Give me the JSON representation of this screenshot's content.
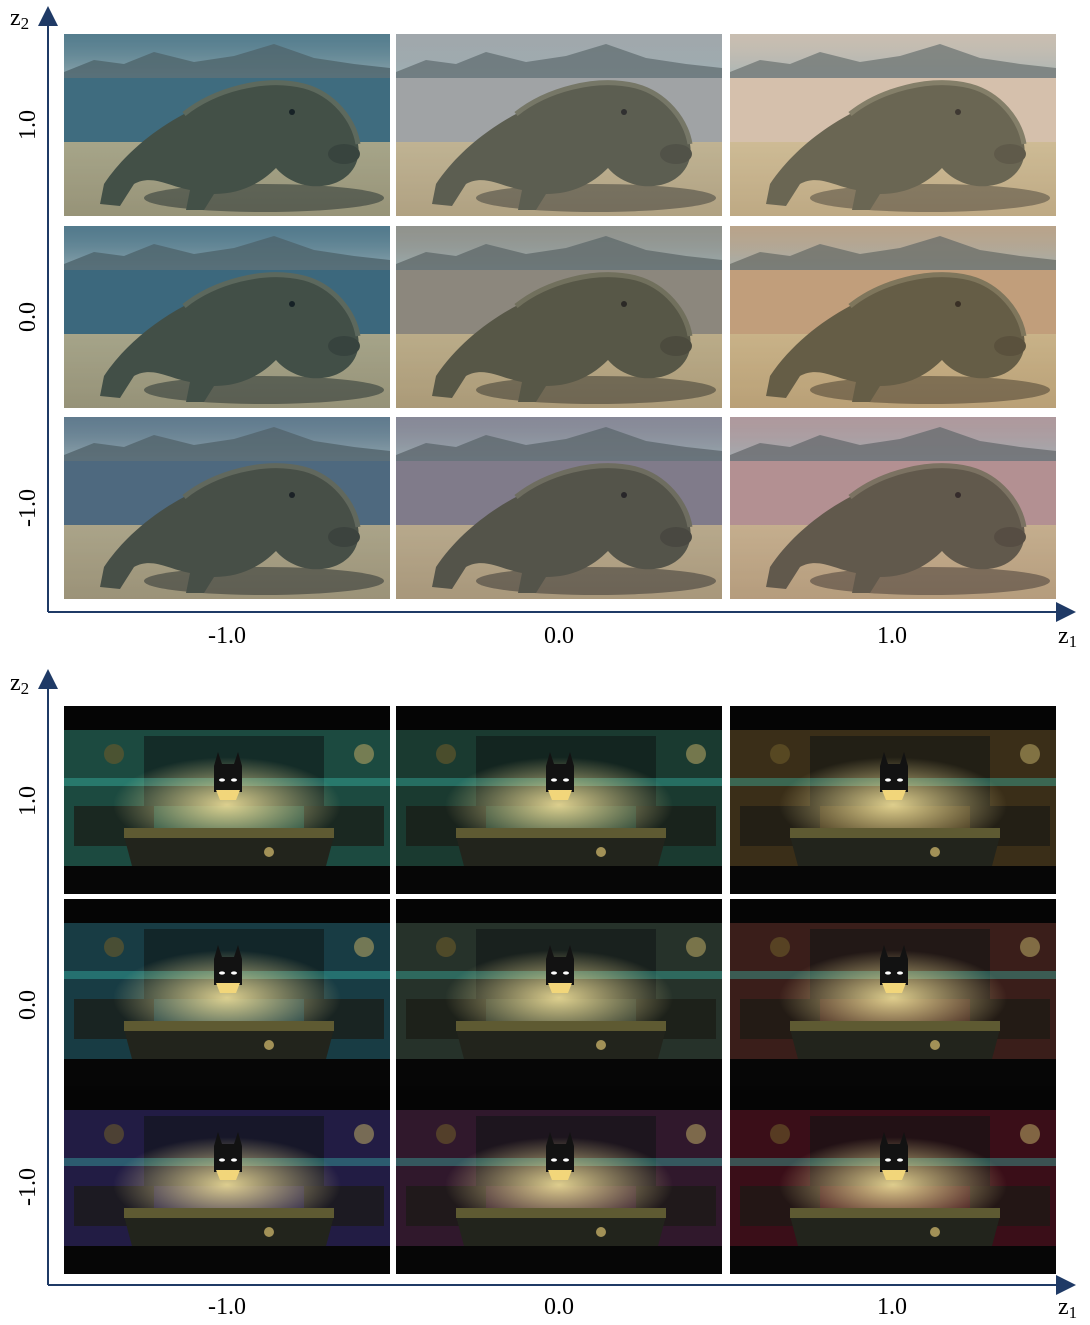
{
  "panels": [
    {
      "scene": "komodo-dragon",
      "axes": {
        "x_var": "z",
        "x_sub": "1",
        "y_var": "z",
        "y_sub": "2"
      },
      "x_ticks": [
        "-1.0",
        "0.0",
        "1.0"
      ],
      "y_ticks": [
        "1.0",
        "0.0",
        "-1.0"
      ],
      "tints": [
        [
          "#2d5f73",
          "#a0a0a0",
          "#e0c2a8"
        ],
        [
          "#2a5a70",
          "#8a8070",
          "#c79a6e"
        ],
        [
          "#3f5c73",
          "#7a7080",
          "#b88a8a"
        ]
      ]
    },
    {
      "scene": "lego-batman",
      "axes": {
        "x_var": "z",
        "x_sub": "1",
        "y_var": "z",
        "y_sub": "2"
      },
      "x_ticks": [
        "-1.0",
        "0.0",
        "1.0"
      ],
      "y_ticks": [
        "1.0",
        "0.0",
        "-1.0"
      ],
      "tints": [
        [
          "#1c4a40",
          "#1a3a30",
          "#3a2e18"
        ],
        [
          "#183c44",
          "#26322a",
          "#3a1e1a"
        ],
        [
          "#221c44",
          "#30182c",
          "#3a0e18"
        ]
      ]
    }
  ]
}
